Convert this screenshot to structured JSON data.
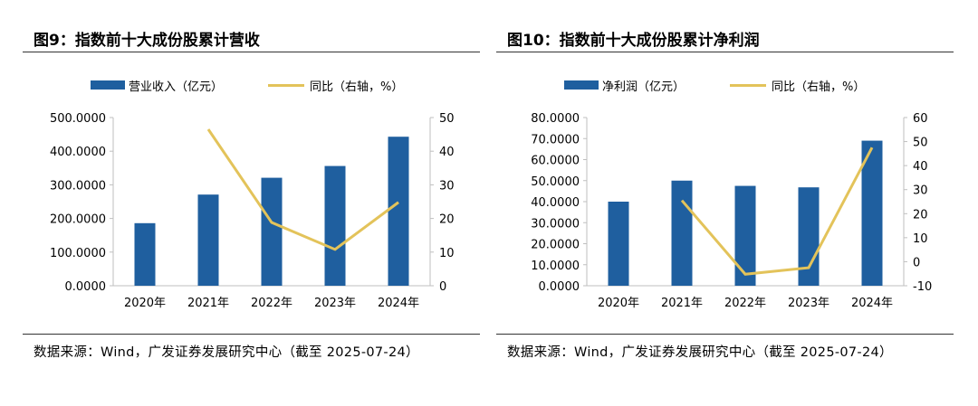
{
  "charts": [
    {
      "figure_title": "图9：指数前十大成份股累计营收",
      "source": "数据来源：Wind，广发证券发展研究中心（截至 2025-07-24）",
      "legend": {
        "bar": "营业收入（亿元）",
        "line": "同比（右轴，%）"
      }
    },
    {
      "figure_title": "图10：指数前十大成份股累计净利润",
      "source": "数据来源：Wind，广发证券发展研究中心（截至 2025-07-24）",
      "legend": {
        "bar": "净利润（亿元）",
        "line": "同比（右轴，%）"
      }
    }
  ],
  "colors": {
    "bar": "#1f5f9f",
    "line": "#e3c35a"
  },
  "chart_data": [
    {
      "type": "bar",
      "title": "图9：指数前十大成份股累计营收",
      "categories": [
        "2020年",
        "2021年",
        "2022年",
        "2023年",
        "2024年"
      ],
      "series": [
        {
          "name": "营业收入（亿元）",
          "type": "bar",
          "axis": "left",
          "values": [
            186,
            271,
            321,
            356,
            443
          ]
        },
        {
          "name": "同比（右轴，%）",
          "type": "line",
          "axis": "right",
          "values": [
            null,
            46.5,
            18.8,
            10.8,
            24.8
          ]
        }
      ],
      "ylim_left": [
        0,
        500
      ],
      "yticks_left": [
        "0.0000",
        "100.0000",
        "200.0000",
        "300.0000",
        "400.0000",
        "500.0000"
      ],
      "ylim_right": [
        0,
        50
      ],
      "yticks_right": [
        "0",
        "10",
        "20",
        "30",
        "40",
        "50"
      ],
      "legend_position": "top",
      "grid": false
    },
    {
      "type": "bar",
      "title": "图10：指数前十大成份股累计净利润",
      "categories": [
        "2020年",
        "2021年",
        "2022年",
        "2023年",
        "2024年"
      ],
      "series": [
        {
          "name": "净利润（亿元）",
          "type": "bar",
          "axis": "left",
          "values": [
            40,
            50,
            47.5,
            46.8,
            69
          ]
        },
        {
          "name": "同比（右轴，%）",
          "type": "line",
          "axis": "right",
          "values": [
            null,
            25.5,
            -5.2,
            -2.5,
            47.5
          ]
        }
      ],
      "ylim_left": [
        0,
        80
      ],
      "yticks_left": [
        "0.0000",
        "10.0000",
        "20.0000",
        "30.0000",
        "40.0000",
        "50.0000",
        "60.0000",
        "70.0000",
        "80.0000"
      ],
      "ylim_right": [
        -10,
        60
      ],
      "yticks_right": [
        "-10",
        "0",
        "10",
        "20",
        "30",
        "40",
        "50",
        "60"
      ],
      "legend_position": "top",
      "grid": false
    }
  ]
}
